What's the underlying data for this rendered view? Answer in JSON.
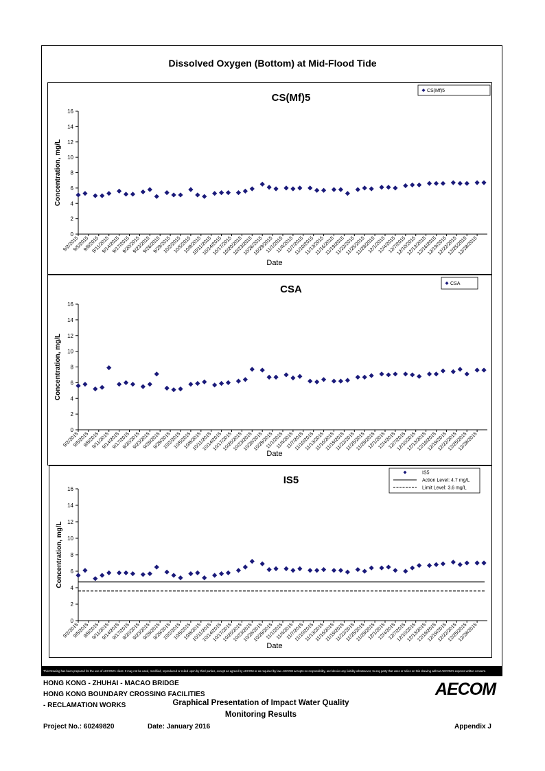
{
  "page": {
    "main_title": "Dissolved Oxygen (Bottom) at Mid-Flood Tide",
    "disclaimer": "This Drawing has been prepared for the use of AECOM's client. It may not be used, modified, reproduced or relied upon by third parties, except as agreed by AECOM or as required by law. AECOM accepts no responsibility, and denies any liability whatsoever, to any party that uses or relies on this drawing without AECOM's express written consent.",
    "footer": {
      "line1": "HONG KONG - ZHUHAI - MACAO BRIDGE",
      "line2": "HONG KONG BOUNDARY CROSSING FACILITIES",
      "line3": "- RECLAMATION WORKS",
      "center1": "Graphical Presentation of Impact Water Quality",
      "center2": "Monitoring Results",
      "project": "Project No.: 60249820",
      "date": "Date: January 2016",
      "appendix": "Appendix J",
      "logo": "AECOM"
    }
  },
  "chart_data": [
    {
      "type": "scatter",
      "title": "CS(Mf)5",
      "xlabel": "Date",
      "ylabel": "Concentration, mg/L",
      "ylim": [
        0,
        16
      ],
      "yticks": [
        0,
        2,
        4,
        6,
        8,
        10,
        12,
        14,
        16
      ],
      "x_tick_labels": [
        "9/2/2015",
        "9/5/2015",
        "9/8/2015",
        "9/11/2015",
        "9/14/2015",
        "9/17/2015",
        "9/20/2015",
        "9/23/2015",
        "9/26/2015",
        "9/29/2015",
        "10/2/2015",
        "10/5/2015",
        "10/8/2015",
        "10/11/2015",
        "10/14/2015",
        "10/17/2015",
        "10/20/2015",
        "10/23/2015",
        "10/26/2015",
        "10/29/2015",
        "11/1/2015",
        "11/4/2015",
        "11/7/2015",
        "11/10/2015",
        "11/13/2015",
        "11/16/2015",
        "11/19/2015",
        "11/22/2015",
        "11/25/2015",
        "11/28/2015",
        "12/1/2015",
        "12/4/2015",
        "12/7/2015",
        "12/10/2015",
        "12/13/2015",
        "12/16/2015",
        "12/19/2015",
        "12/22/2015",
        "12/25/2015",
        "12/28/2015"
      ],
      "x_range": [
        "2015-09-02",
        "2015-12-31"
      ],
      "legend_position": "top-right",
      "series": [
        {
          "name": "CS(Mf)5",
          "color": "#1a1a7a",
          "marker": "diamond",
          "points": [
            [
              "2015-09-02",
              5.1
            ],
            [
              "2015-09-04",
              5.3
            ],
            [
              "2015-09-07",
              5.0
            ],
            [
              "2015-09-09",
              5.0
            ],
            [
              "2015-09-11",
              5.3
            ],
            [
              "2015-09-14",
              5.6
            ],
            [
              "2015-09-16",
              5.2
            ],
            [
              "2015-09-18",
              5.2
            ],
            [
              "2015-09-21",
              5.5
            ],
            [
              "2015-09-23",
              5.8
            ],
            [
              "2015-09-25",
              4.9
            ],
            [
              "2015-09-28",
              5.4
            ],
            [
              "2015-09-30",
              5.1
            ],
            [
              "2015-10-02",
              5.1
            ],
            [
              "2015-10-05",
              5.8
            ],
            [
              "2015-10-07",
              5.1
            ],
            [
              "2015-10-09",
              4.9
            ],
            [
              "2015-10-12",
              5.3
            ],
            [
              "2015-10-14",
              5.4
            ],
            [
              "2015-10-16",
              5.4
            ],
            [
              "2015-10-19",
              5.4
            ],
            [
              "2015-10-21",
              5.6
            ],
            [
              "2015-10-23",
              5.9
            ],
            [
              "2015-10-26",
              6.5
            ],
            [
              "2015-10-28",
              6.1
            ],
            [
              "2015-10-30",
              5.9
            ],
            [
              "2015-11-02",
              6.0
            ],
            [
              "2015-11-04",
              5.9
            ],
            [
              "2015-11-06",
              6.0
            ],
            [
              "2015-11-09",
              6.0
            ],
            [
              "2015-11-11",
              5.7
            ],
            [
              "2015-11-13",
              5.7
            ],
            [
              "2015-11-16",
              5.8
            ],
            [
              "2015-11-18",
              5.8
            ],
            [
              "2015-11-20",
              5.3
            ],
            [
              "2015-11-23",
              5.8
            ],
            [
              "2015-11-25",
              6.0
            ],
            [
              "2015-11-27",
              5.9
            ],
            [
              "2015-11-30",
              6.1
            ],
            [
              "2015-12-02",
              6.1
            ],
            [
              "2015-12-04",
              6.0
            ],
            [
              "2015-12-07",
              6.3
            ],
            [
              "2015-12-09",
              6.4
            ],
            [
              "2015-12-11",
              6.4
            ],
            [
              "2015-12-14",
              6.6
            ],
            [
              "2015-12-16",
              6.6
            ],
            [
              "2015-12-18",
              6.6
            ],
            [
              "2015-12-21",
              6.7
            ],
            [
              "2015-12-23",
              6.6
            ],
            [
              "2015-12-25",
              6.6
            ],
            [
              "2015-12-28",
              6.7
            ],
            [
              "2015-12-30",
              6.7
            ]
          ]
        }
      ]
    },
    {
      "type": "scatter",
      "title": "CSA",
      "xlabel": "Date",
      "ylabel": "Concentration, mg/L",
      "ylim": [
        0,
        16
      ],
      "yticks": [
        0,
        2,
        4,
        6,
        8,
        10,
        12,
        14,
        16
      ],
      "x_tick_labels": [
        "9/2/2015",
        "9/5/2015",
        "9/8/2015",
        "9/11/2015",
        "9/14/2015",
        "9/17/2015",
        "9/20/2015",
        "9/23/2015",
        "9/26/2015",
        "9/29/2015",
        "10/2/2015",
        "10/5/2015",
        "10/8/2015",
        "10/11/2015",
        "10/14/2015",
        "10/17/2015",
        "10/20/2015",
        "10/23/2015",
        "10/26/2015",
        "10/29/2015",
        "11/1/2015",
        "11/4/2015",
        "11/7/2015",
        "11/10/2015",
        "11/13/2015",
        "11/16/2015",
        "11/19/2015",
        "11/22/2015",
        "11/25/2015",
        "11/28/2015",
        "12/1/2015",
        "12/4/2015",
        "12/7/2015",
        "12/10/2015",
        "12/13/2015",
        "12/16/2015",
        "12/19/2015",
        "12/22/2015",
        "12/25/2015",
        "12/28/2015"
      ],
      "x_range": [
        "2015-09-02",
        "2015-12-31"
      ],
      "legend_position": "top-right",
      "series": [
        {
          "name": "CSA",
          "color": "#1a1a7a",
          "marker": "diamond",
          "points": [
            [
              "2015-09-02",
              5.6
            ],
            [
              "2015-09-04",
              5.8
            ],
            [
              "2015-09-07",
              5.2
            ],
            [
              "2015-09-09",
              5.4
            ],
            [
              "2015-09-11",
              7.9
            ],
            [
              "2015-09-14",
              5.8
            ],
            [
              "2015-09-16",
              6.0
            ],
            [
              "2015-09-18",
              5.8
            ],
            [
              "2015-09-21",
              5.5
            ],
            [
              "2015-09-23",
              5.8
            ],
            [
              "2015-09-25",
              7.1
            ],
            [
              "2015-09-28",
              5.3
            ],
            [
              "2015-09-30",
              5.1
            ],
            [
              "2015-10-02",
              5.2
            ],
            [
              "2015-10-05",
              5.8
            ],
            [
              "2015-10-07",
              5.9
            ],
            [
              "2015-10-09",
              6.1
            ],
            [
              "2015-10-12",
              5.7
            ],
            [
              "2015-10-14",
              5.9
            ],
            [
              "2015-10-16",
              6.0
            ],
            [
              "2015-10-19",
              6.2
            ],
            [
              "2015-10-21",
              6.4
            ],
            [
              "2015-10-23",
              7.7
            ],
            [
              "2015-10-26",
              7.6
            ],
            [
              "2015-10-28",
              6.7
            ],
            [
              "2015-10-30",
              6.7
            ],
            [
              "2015-11-02",
              7.0
            ],
            [
              "2015-11-04",
              6.6
            ],
            [
              "2015-11-06",
              6.8
            ],
            [
              "2015-11-09",
              6.2
            ],
            [
              "2015-11-11",
              6.1
            ],
            [
              "2015-11-13",
              6.4
            ],
            [
              "2015-11-16",
              6.2
            ],
            [
              "2015-11-18",
              6.2
            ],
            [
              "2015-11-20",
              6.3
            ],
            [
              "2015-11-23",
              6.7
            ],
            [
              "2015-11-25",
              6.7
            ],
            [
              "2015-11-27",
              6.9
            ],
            [
              "2015-11-30",
              7.1
            ],
            [
              "2015-12-02",
              7.0
            ],
            [
              "2015-12-04",
              7.1
            ],
            [
              "2015-12-07",
              7.1
            ],
            [
              "2015-12-09",
              7.0
            ],
            [
              "2015-12-11",
              6.8
            ],
            [
              "2015-12-14",
              7.1
            ],
            [
              "2015-12-16",
              7.1
            ],
            [
              "2015-12-18",
              7.5
            ],
            [
              "2015-12-21",
              7.4
            ],
            [
              "2015-12-23",
              7.7
            ],
            [
              "2015-12-25",
              7.1
            ],
            [
              "2015-12-28",
              7.6
            ],
            [
              "2015-12-30",
              7.6
            ]
          ]
        }
      ]
    },
    {
      "type": "scatter",
      "title": "IS5",
      "xlabel": "Date",
      "ylabel": "Concentration, mg/L",
      "ylim": [
        0,
        16
      ],
      "yticks": [
        0,
        2,
        4,
        6,
        8,
        10,
        12,
        14,
        16
      ],
      "x_tick_labels": [
        "9/2/2015",
        "9/5/2015",
        "9/8/2015",
        "9/11/2015",
        "9/14/2015",
        "9/17/2015",
        "9/20/2015",
        "9/23/2015",
        "9/26/2015",
        "9/29/2015",
        "10/2/2015",
        "10/5/2015",
        "10/8/2015",
        "10/11/2015",
        "10/14/2015",
        "10/17/2015",
        "10/20/2015",
        "10/23/2015",
        "10/26/2015",
        "10/29/2015",
        "11/1/2015",
        "11/4/2015",
        "11/7/2015",
        "11/10/2015",
        "11/13/2015",
        "11/16/2015",
        "11/19/2015",
        "11/22/2015",
        "11/25/2015",
        "11/28/2015",
        "12/1/2015",
        "12/4/2015",
        "12/7/2015",
        "12/10/2015",
        "12/13/2015",
        "12/16/2015",
        "12/19/2015",
        "12/22/2015",
        "12/25/2015",
        "12/28/2015"
      ],
      "x_range": [
        "2015-09-02",
        "2015-12-31"
      ],
      "legend_position": "top-right",
      "series": [
        {
          "name": "IS5",
          "color": "#1a1a7a",
          "marker": "diamond",
          "points": [
            [
              "2015-09-02",
              5.5
            ],
            [
              "2015-09-04",
              6.1
            ],
            [
              "2015-09-07",
              5.1
            ],
            [
              "2015-09-09",
              5.5
            ],
            [
              "2015-09-11",
              5.8
            ],
            [
              "2015-09-14",
              5.8
            ],
            [
              "2015-09-16",
              5.8
            ],
            [
              "2015-09-18",
              5.7
            ],
            [
              "2015-09-21",
              5.6
            ],
            [
              "2015-09-23",
              5.7
            ],
            [
              "2015-09-25",
              6.5
            ],
            [
              "2015-09-28",
              5.9
            ],
            [
              "2015-09-30",
              5.5
            ],
            [
              "2015-10-02",
              5.2
            ],
            [
              "2015-10-05",
              5.7
            ],
            [
              "2015-10-07",
              5.8
            ],
            [
              "2015-10-09",
              5.2
            ],
            [
              "2015-10-12",
              5.5
            ],
            [
              "2015-10-14",
              5.7
            ],
            [
              "2015-10-16",
              5.8
            ],
            [
              "2015-10-19",
              6.1
            ],
            [
              "2015-10-21",
              6.5
            ],
            [
              "2015-10-23",
              7.2
            ],
            [
              "2015-10-26",
              6.9
            ],
            [
              "2015-10-28",
              6.2
            ],
            [
              "2015-10-30",
              6.3
            ],
            [
              "2015-11-02",
              6.3
            ],
            [
              "2015-11-04",
              6.1
            ],
            [
              "2015-11-06",
              6.3
            ],
            [
              "2015-11-09",
              6.1
            ],
            [
              "2015-11-11",
              6.1
            ],
            [
              "2015-11-13",
              6.2
            ],
            [
              "2015-11-16",
              6.1
            ],
            [
              "2015-11-18",
              6.1
            ],
            [
              "2015-11-20",
              5.9
            ],
            [
              "2015-11-23",
              6.2
            ],
            [
              "2015-11-25",
              6.0
            ],
            [
              "2015-11-27",
              6.4
            ],
            [
              "2015-11-30",
              6.4
            ],
            [
              "2015-12-02",
              6.5
            ],
            [
              "2015-12-04",
              6.1
            ],
            [
              "2015-12-07",
              6.0
            ],
            [
              "2015-12-09",
              6.4
            ],
            [
              "2015-12-11",
              6.7
            ],
            [
              "2015-12-14",
              6.7
            ],
            [
              "2015-12-16",
              6.8
            ],
            [
              "2015-12-18",
              6.9
            ],
            [
              "2015-12-21",
              7.1
            ],
            [
              "2015-12-23",
              6.8
            ],
            [
              "2015-12-25",
              7.0
            ],
            [
              "2015-12-28",
              7.0
            ],
            [
              "2015-12-30",
              7.0
            ]
          ]
        },
        {
          "name": "Action Level: 4.7 mg/L",
          "type": "hline",
          "y": 4.7,
          "style": "solid",
          "color": "#000000"
        },
        {
          "name": "Limit Level: 3.6 mg/L",
          "type": "hline",
          "y": 3.6,
          "style": "dashed",
          "color": "#000000"
        }
      ]
    }
  ]
}
